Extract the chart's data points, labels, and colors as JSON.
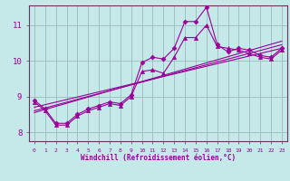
{
  "xlabel": "Windchill (Refroidissement éolien,°C)",
  "bg_color": "#c5e8e8",
  "line_color": "#990099",
  "grid_color": "#99bbbb",
  "spine_color": "#663366",
  "xlim": [
    -0.5,
    23.5
  ],
  "ylim": [
    7.75,
    11.55
  ],
  "yticks": [
    8,
    9,
    10,
    11
  ],
  "xticks": [
    0,
    1,
    2,
    3,
    4,
    5,
    6,
    7,
    8,
    9,
    10,
    11,
    12,
    13,
    14,
    15,
    16,
    17,
    18,
    19,
    20,
    21,
    22,
    23
  ],
  "series": [
    {
      "x": [
        0,
        1,
        2,
        3,
        4,
        5,
        6,
        7,
        8,
        9,
        10,
        11,
        12,
        13,
        14,
        15,
        16,
        17,
        18,
        19,
        20,
        21,
        22,
        23
      ],
      "y": [
        8.9,
        8.65,
        8.25,
        8.25,
        8.5,
        8.65,
        8.75,
        8.85,
        8.8,
        9.05,
        9.95,
        10.1,
        10.05,
        10.35,
        11.1,
        11.1,
        11.5,
        10.45,
        10.25,
        10.35,
        10.3,
        10.15,
        10.1,
        10.35
      ],
      "marker": "D",
      "markersize": 2.5,
      "linewidth": 0.8
    },
    {
      "x": [
        0,
        1,
        2,
        3,
        4,
        5,
        6,
        7,
        8,
        9,
        10,
        11,
        12,
        13,
        14,
        15,
        16,
        17,
        18,
        19,
        20,
        21,
        22,
        23
      ],
      "y": [
        8.85,
        8.6,
        8.2,
        8.2,
        8.45,
        8.6,
        8.7,
        8.8,
        8.75,
        9.0,
        9.7,
        9.75,
        9.65,
        10.1,
        10.65,
        10.65,
        11.0,
        10.4,
        10.35,
        10.3,
        10.2,
        10.1,
        10.05,
        10.3
      ],
      "marker": "^",
      "markersize": 3,
      "linewidth": 0.8
    },
    {
      "x": [
        0,
        23
      ],
      "y": [
        8.7,
        10.35
      ],
      "marker": null,
      "markersize": 0,
      "linewidth": 0.8
    },
    {
      "x": [
        0,
        23
      ],
      "y": [
        8.6,
        10.45
      ],
      "marker": null,
      "markersize": 0,
      "linewidth": 0.8
    },
    {
      "x": [
        0,
        23
      ],
      "y": [
        8.55,
        10.55
      ],
      "marker": null,
      "markersize": 0,
      "linewidth": 0.8
    }
  ]
}
